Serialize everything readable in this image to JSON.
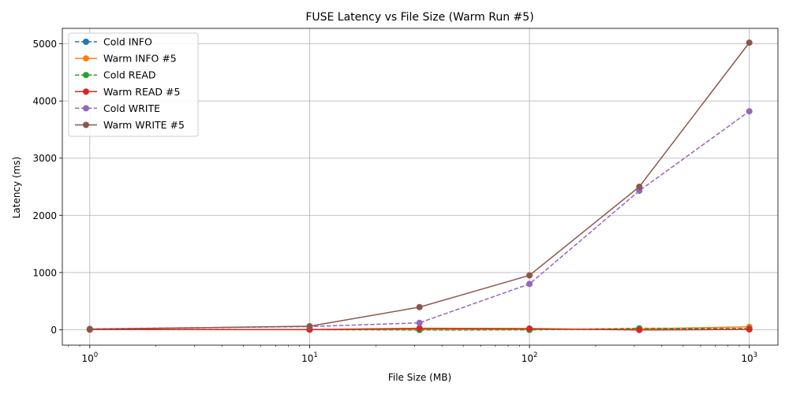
{
  "chart_data": {
    "type": "line",
    "title": "FUSE Latency vs File Size (Warm Run #5)",
    "xlabel": "File Size (MB)",
    "ylabel": "Latency (ms)",
    "xscale": "log",
    "xlim": [
      0.75,
      1350
    ],
    "ylim": [
      -270,
      5270
    ],
    "x": [
      1,
      10,
      31.6,
      100,
      316,
      1000
    ],
    "x_ticks": [
      1,
      10,
      100,
      1000
    ],
    "x_tick_labels": [
      {
        "base": "10",
        "exp": "0"
      },
      {
        "base": "10",
        "exp": "1"
      },
      {
        "base": "10",
        "exp": "2"
      },
      {
        "base": "10",
        "exp": "3"
      }
    ],
    "y_ticks": [
      0,
      1000,
      2000,
      3000,
      4000,
      5000
    ],
    "y_tick_labels": [
      "0",
      "1000",
      "2000",
      "3000",
      "4000",
      "5000"
    ],
    "grid": true,
    "legend_position": "top-left",
    "series": [
      {
        "name": "Cold INFO",
        "color": "#1f77b4",
        "style": "dashed",
        "values": [
          3,
          2,
          5,
          4,
          8,
          12
        ]
      },
      {
        "name": "Warm INFO #5",
        "color": "#ff7f0e",
        "style": "solid",
        "values": [
          2,
          1,
          3,
          2,
          15,
          50
        ]
      },
      {
        "name": "Cold READ",
        "color": "#2ca02c",
        "style": "dashed",
        "values": [
          5,
          2,
          -5,
          -3,
          25,
          20
        ]
      },
      {
        "name": "Warm READ #5",
        "color": "#d62728",
        "style": "solid",
        "values": [
          4,
          2,
          25,
          20,
          -5,
          5
        ]
      },
      {
        "name": "Cold WRITE",
        "color": "#9467bd",
        "style": "dashed",
        "values": [
          15,
          55,
          120,
          800,
          2430,
          3820
        ]
      },
      {
        "name": "Warm WRITE #5",
        "color": "#8c564b",
        "style": "solid",
        "values": [
          10,
          60,
          395,
          950,
          2500,
          5020
        ]
      }
    ]
  }
}
